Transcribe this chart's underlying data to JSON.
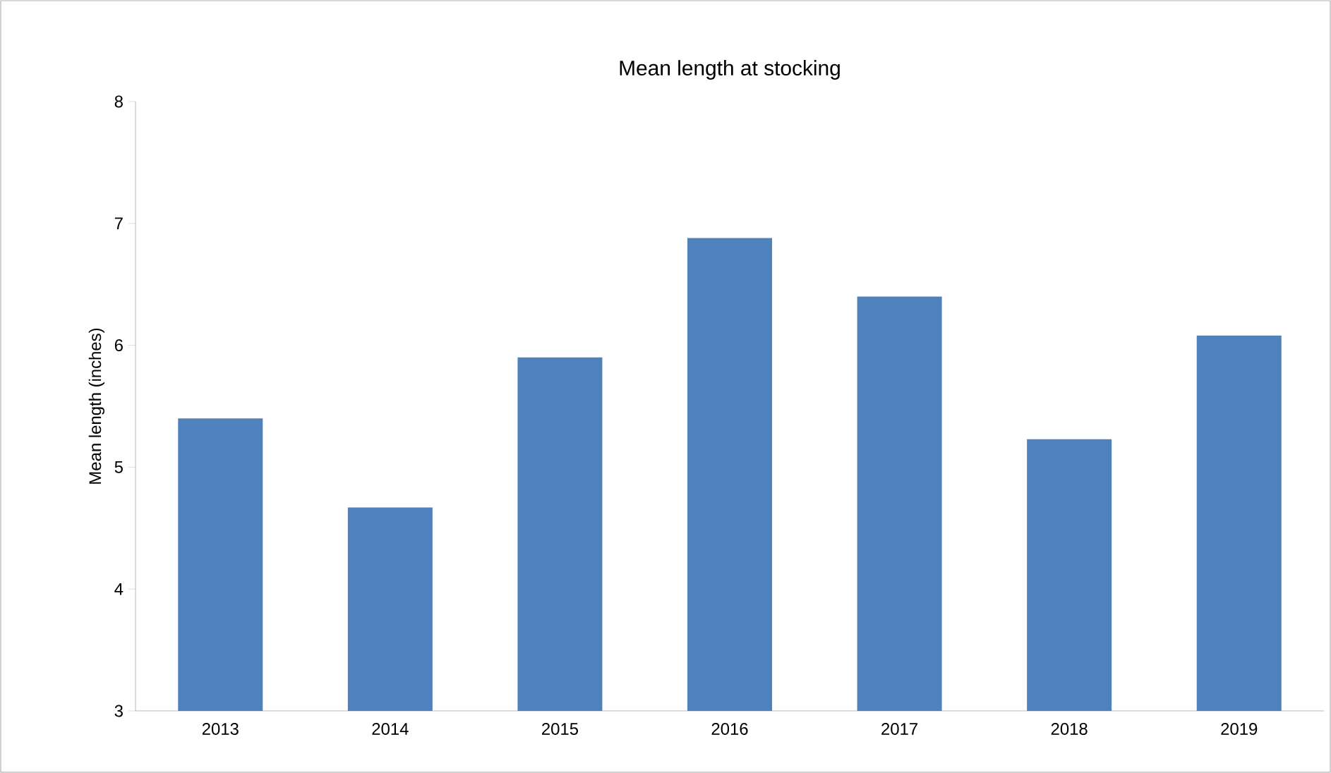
{
  "chart_data": {
    "type": "bar",
    "title": "Mean length at stocking",
    "ylabel": "Mean length (inches)",
    "categories": [
      "2013",
      "2014",
      "2015",
      "2016",
      "2017",
      "2018",
      "2019"
    ],
    "values": [
      5.4,
      4.67,
      5.9,
      6.88,
      6.4,
      5.23,
      6.08
    ],
    "color": "#4f81bd",
    "ylim": [
      3,
      8
    ],
    "yticks": [
      3,
      4,
      5,
      6,
      7,
      8
    ],
    "grid": false
  }
}
